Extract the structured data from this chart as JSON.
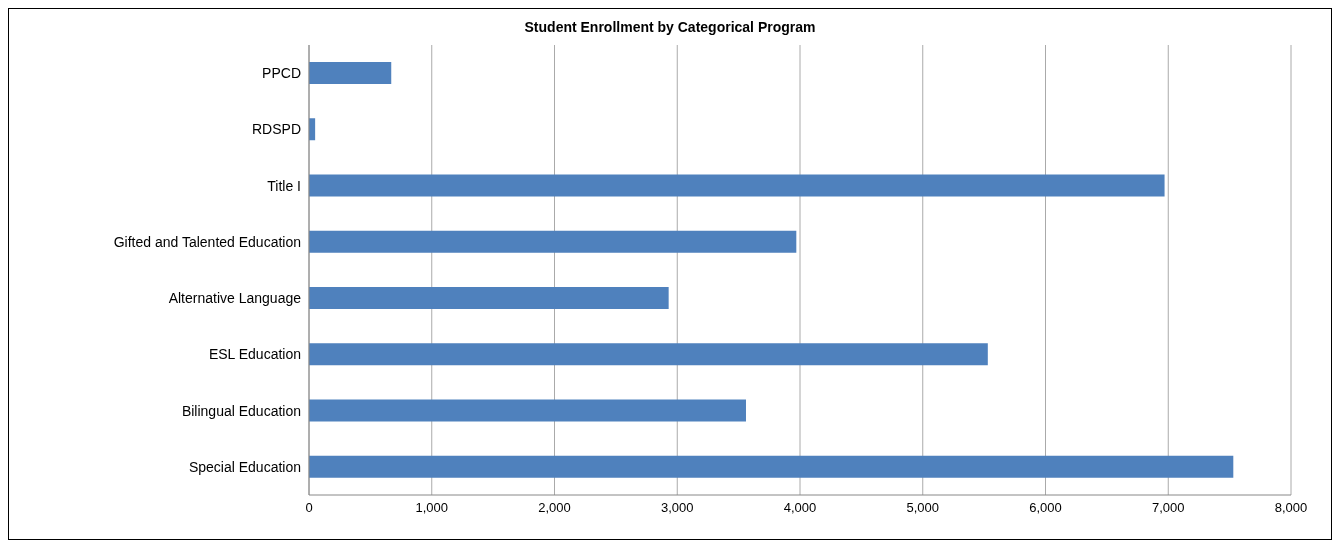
{
  "chart_data": {
    "type": "bar",
    "orientation": "horizontal",
    "title": "Student Enrollment by Categorical Program",
    "categories": [
      "PPCD",
      "RDSPD",
      "Title I",
      "Gifted and Talented Education",
      "Alternative Language",
      "ESL Education",
      "Bilingual Education",
      "Special Education"
    ],
    "values": [
      670,
      50,
      6970,
      3970,
      2930,
      5530,
      3560,
      7530
    ],
    "color": "#4f81bd",
    "xlim": [
      0,
      8000
    ],
    "xticks": [
      0,
      {
        "value": 1000,
        "label": "1,000"
      },
      {
        "value": 2000,
        "label": "2,000"
      },
      {
        "value": 3000,
        "label": "3,000"
      },
      {
        "value": 4000,
        "label": "4,000"
      },
      {
        "value": 5000,
        "label": "5,000"
      },
      {
        "value": 6000,
        "label": "6,000"
      },
      {
        "value": 7000,
        "label": "7,000"
      },
      {
        "value": 8000,
        "label": "8,000"
      }
    ],
    "grid": "x",
    "legend": false
  }
}
